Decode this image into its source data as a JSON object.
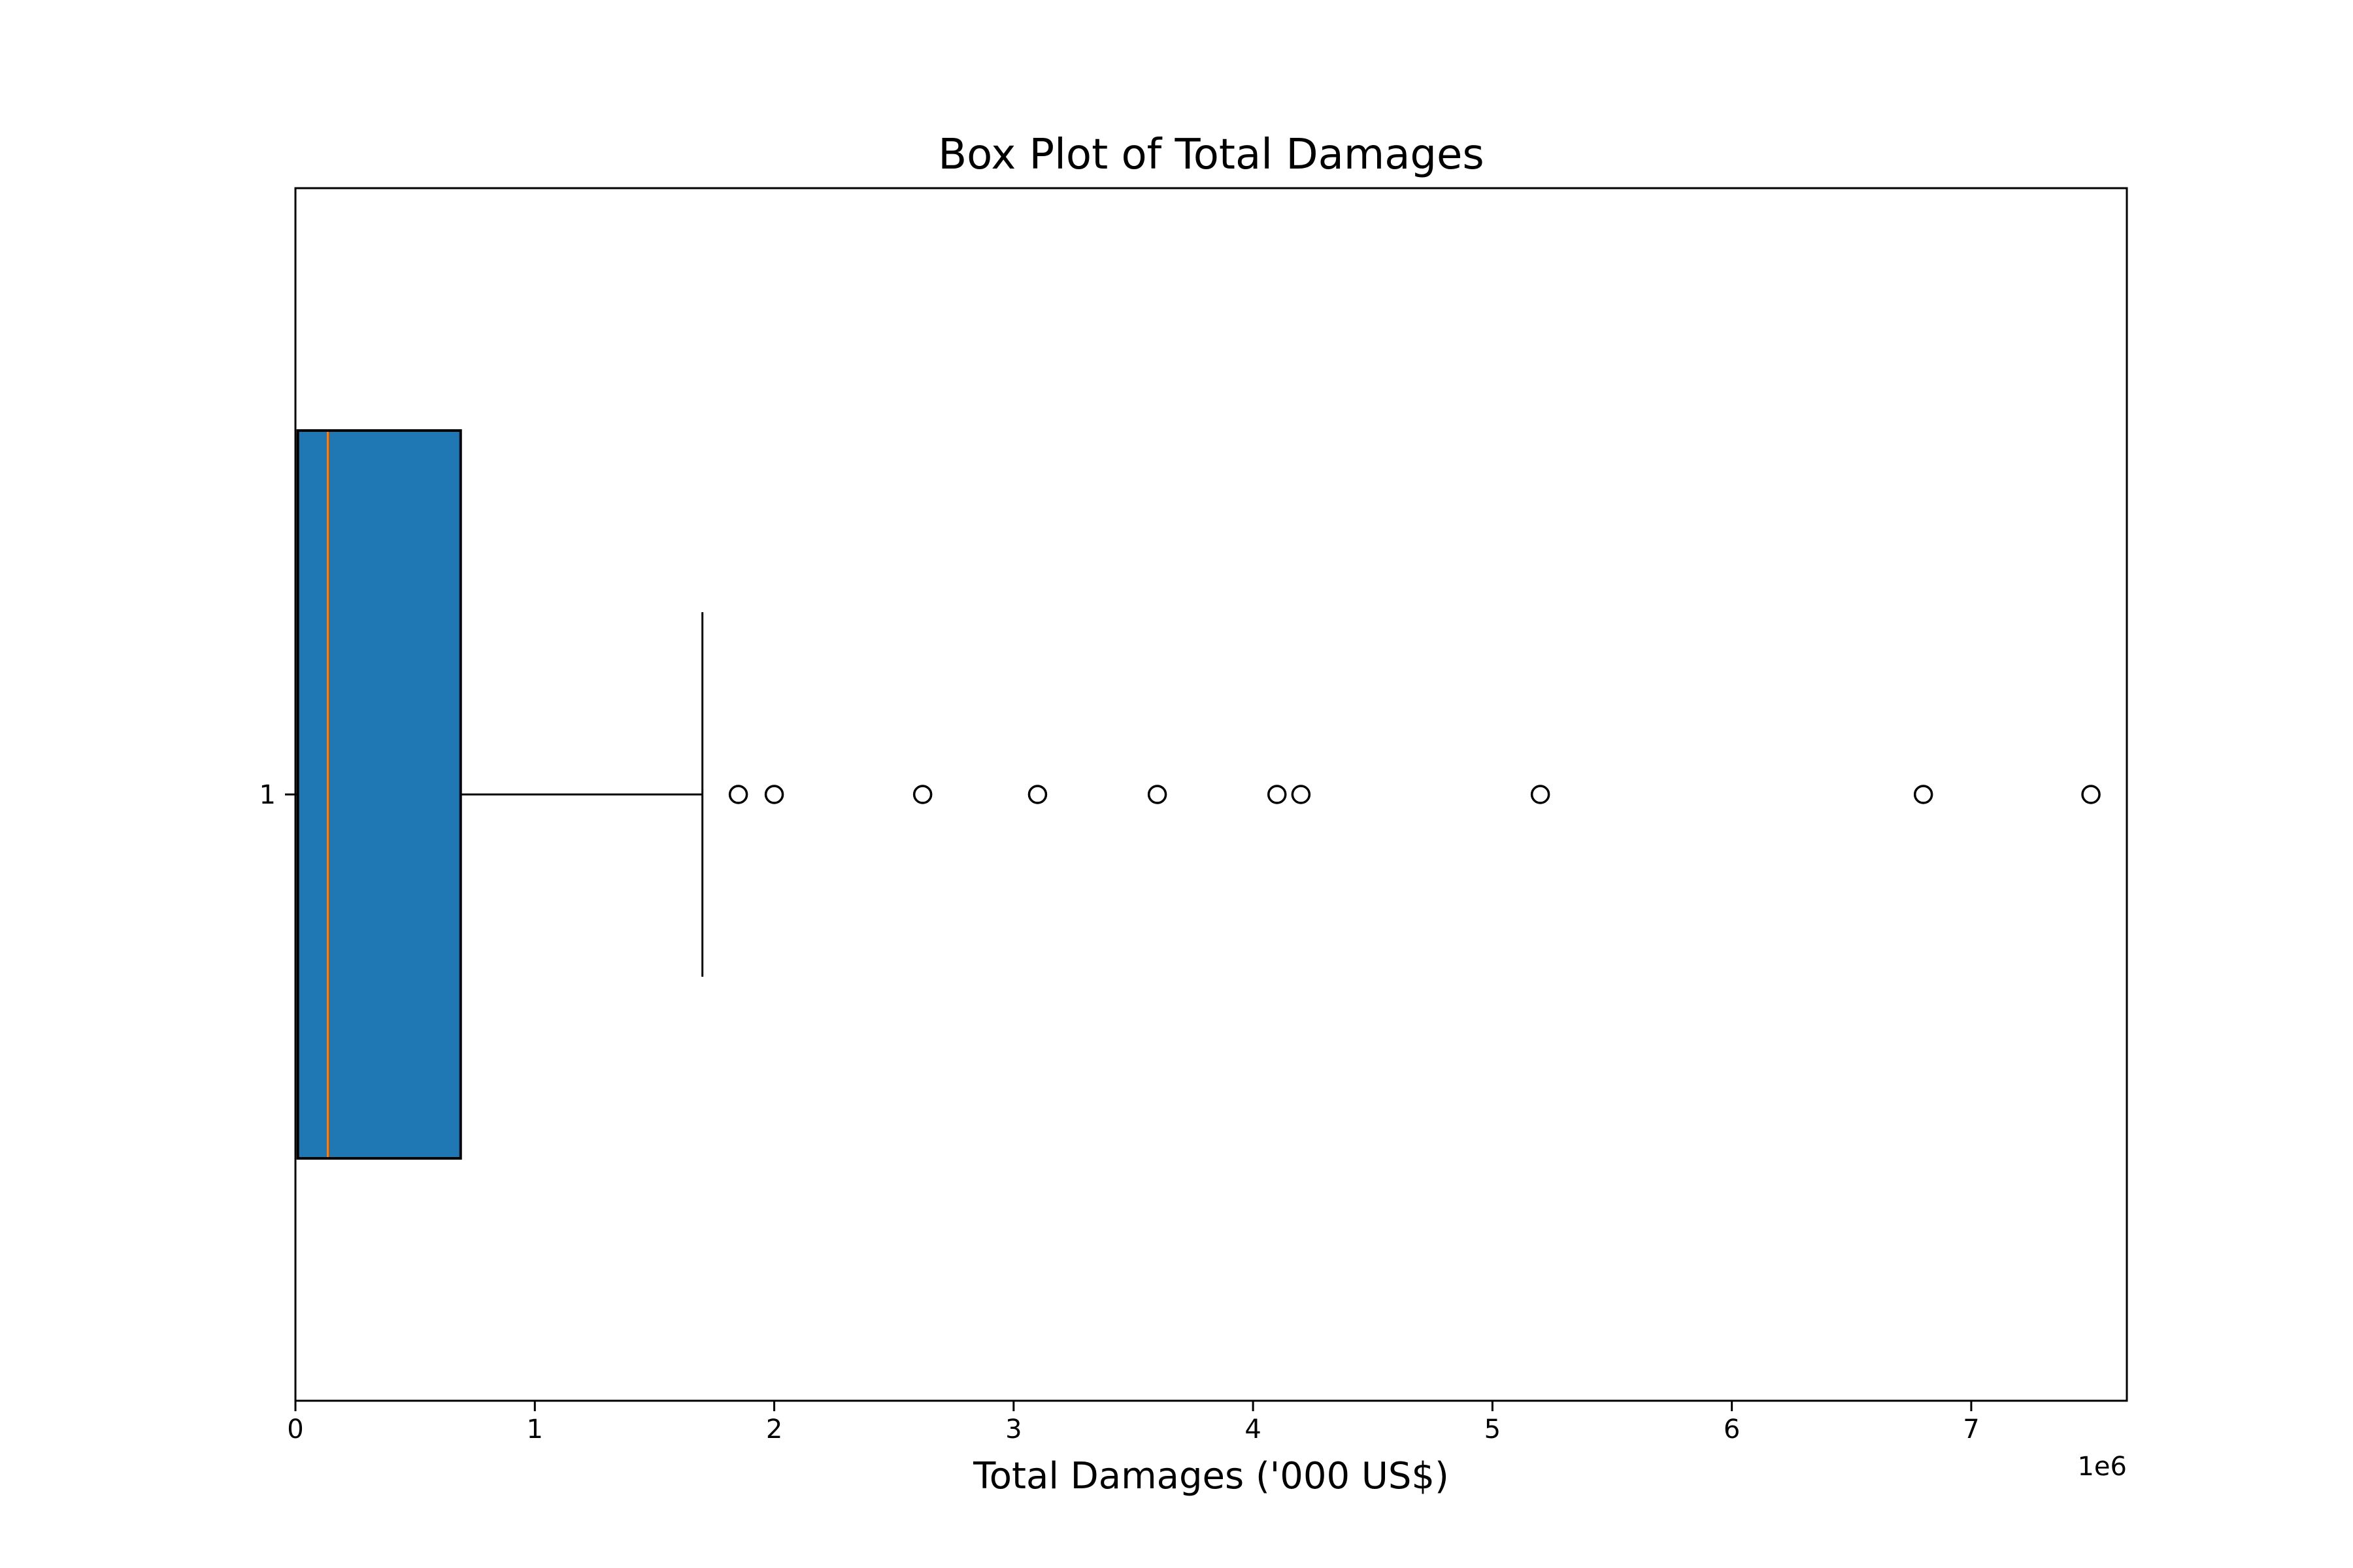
{
  "chart_data": {
    "type": "boxplot",
    "orientation": "horizontal",
    "title": "Box Plot of Total Damages",
    "xlabel": "Total Damages ('000 US$)",
    "ylabel": "",
    "x_offset_label": "1e6",
    "x_scale": 1000000,
    "xlim": [
      0,
      7650000
    ],
    "x_ticks": [
      0,
      1,
      2,
      3,
      4,
      5,
      6,
      7
    ],
    "category_labels": [
      "1"
    ],
    "grid": false,
    "box": {
      "category": "1",
      "q1": 10000,
      "median": 135000,
      "q3": 690000,
      "whisker_low": 0,
      "whisker_high": 1700000,
      "outliers": [
        1850000,
        2000000,
        2620000,
        3100000,
        3600000,
        4100000,
        4200000,
        5200000,
        6800000,
        7500000
      ]
    },
    "colors": {
      "box_fill": "#1f77b4",
      "median_line": "#ff7f0e",
      "edge": "#000000"
    }
  }
}
